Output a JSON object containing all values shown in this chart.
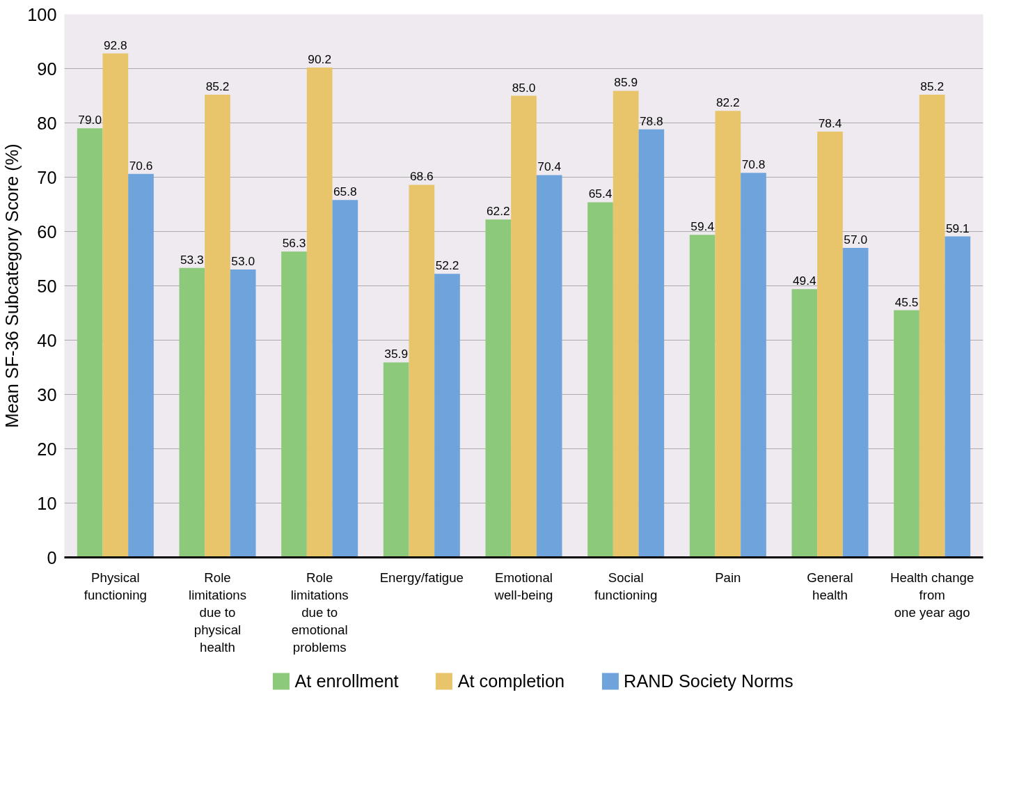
{
  "chart_data": {
    "type": "bar",
    "ylabel": "Mean SF-36 Subcategory Score (%)",
    "categories": [
      "Physical\nfunctioning",
      "Role\nlimitations\ndue to\nphysical\nhealth",
      "Role\nlimitations\ndue to\nemotional\nproblems",
      "Energy/fatigue",
      "Emotional\nwell-being",
      "Social\nfunctioning",
      "Pain",
      "General\nhealth",
      "Health change\nfrom\none year ago"
    ],
    "series": [
      {
        "name": "At enrollment",
        "color": "#8cc97a",
        "values": [
          79.0,
          53.3,
          56.3,
          35.9,
          62.2,
          65.4,
          59.4,
          49.4,
          45.5
        ],
        "value_labels": [
          "79.0",
          "53.3",
          "56.3",
          "35.9",
          "62.2",
          "65.4",
          "59.4",
          "49.4",
          "45.5"
        ]
      },
      {
        "name": "At completion",
        "color": "#e8c46a",
        "values": [
          92.8,
          85.2,
          90.2,
          68.6,
          85.0,
          85.9,
          82.2,
          78.4,
          85.2
        ],
        "value_labels": [
          "92.8",
          "85.2",
          "90.2",
          "68.6",
          "85.0",
          "85.9",
          "82.2",
          "78.4",
          "85.2"
        ]
      },
      {
        "name": "RAND Society Norms",
        "color": "#6ea3dc",
        "values": [
          70.6,
          53.0,
          65.8,
          52.2,
          70.4,
          78.8,
          70.8,
          57.0,
          59.1
        ],
        "value_labels": [
          "70.6",
          "53.0",
          "65.8",
          "52.2",
          "70.4",
          "78.8",
          "70.8",
          "57.0",
          "59.1"
        ]
      }
    ],
    "ylim": [
      0,
      100
    ],
    "yticks": [
      0,
      10,
      20,
      30,
      40,
      50,
      60,
      70,
      80,
      90,
      100
    ],
    "grid": "y",
    "legend": "bottom"
  }
}
